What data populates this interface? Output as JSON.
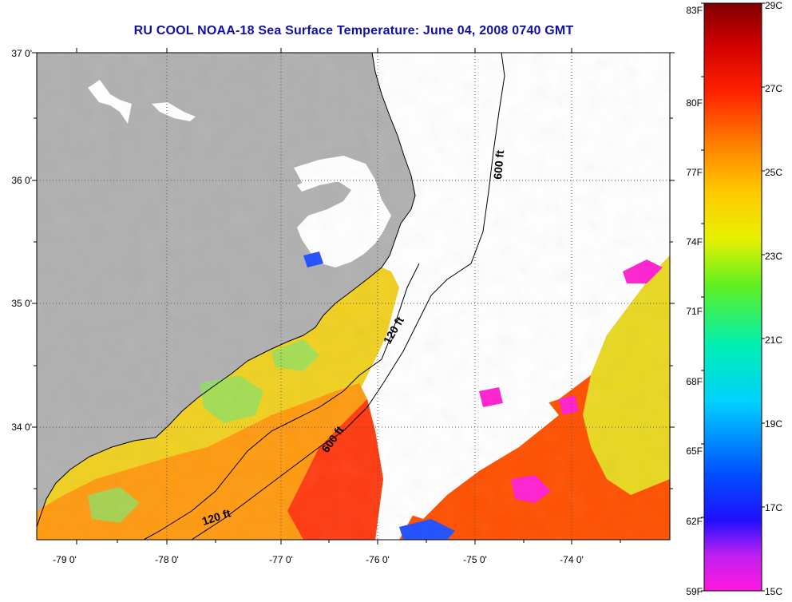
{
  "title": "RU COOL  NOAA-18  Sea Surface Temperature:  June 04, 2008 0740 GMT",
  "map": {
    "lat_ticks": [
      "37 0'",
      "36 0'",
      "35 0'",
      "34 0'"
    ],
    "lon_ticks": [
      "-79 0'",
      "-78 0'",
      "-77 0'",
      "-76 0'",
      "-75 0'",
      "-74 0'"
    ],
    "lat_range": [
      33.1,
      37.0
    ],
    "lon_range": [
      -79.3,
      -73.2
    ],
    "isobath_labels": [
      "600 ft",
      "120 ft",
      "600 ft",
      "120 ft"
    ],
    "colors": {
      "land": "#b0b0b0",
      "no_data": "#ffffff",
      "coastline": "#000000",
      "title": "#1010a8"
    }
  },
  "colorbar": {
    "fahrenheit_labels": [
      "83F",
      "80F",
      "77F",
      "74F",
      "71F",
      "68F",
      "65F",
      "62F",
      "59F"
    ],
    "celsius_labels": [
      "29C",
      "27C",
      "25C",
      "23C",
      "21C",
      "19C",
      "17C",
      "15C"
    ],
    "range_c": [
      15,
      29
    ],
    "stops": [
      "#ff18e0",
      "#b020f0",
      "#0000ff",
      "#0070ff",
      "#00e0ff",
      "#00f0a0",
      "#a0f000",
      "#ffff00",
      "#ffb000",
      "#ff6000",
      "#ff0000",
      "#c00000",
      "#800000"
    ]
  }
}
